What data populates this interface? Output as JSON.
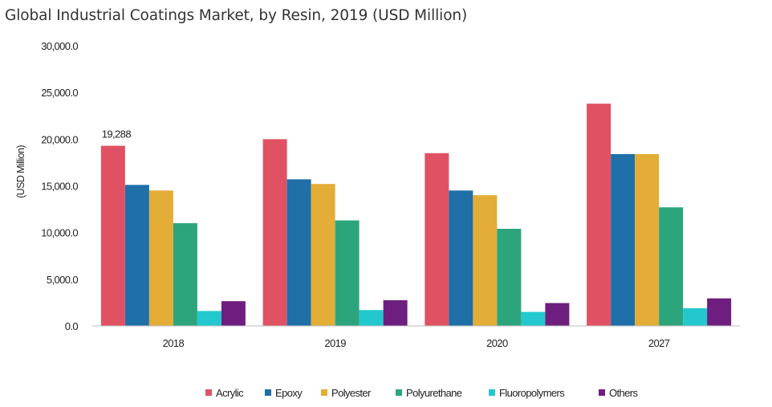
{
  "chart_data": {
    "type": "bar",
    "title": "Global Industrial Coatings Market, by Resin, 2019 (USD Million)",
    "xlabel": "",
    "ylabel": "(USD Million)",
    "ylim": [
      0,
      30000
    ],
    "yticks": [
      "0.0",
      "5,000.0",
      "10,000.0",
      "15,000.0",
      "20,000.0",
      "25,000.0",
      "30,000.0"
    ],
    "categories": [
      "2018",
      "2019",
      "2020",
      "2027"
    ],
    "series": [
      {
        "name": "Acrylic",
        "color": "#E05263",
        "values": [
          19288,
          20000,
          18500,
          23800
        ]
      },
      {
        "name": "Epoxy",
        "color": "#1F6FA8",
        "values": [
          15100,
          15700,
          14500,
          18400
        ]
      },
      {
        "name": "Polyester",
        "color": "#E3AD37",
        "values": [
          14500,
          15200,
          14000,
          18400
        ]
      },
      {
        "name": "Polyurethane",
        "color": "#2DA57C",
        "values": [
          11000,
          11300,
          10400,
          12700
        ]
      },
      {
        "name": "Fluoropolymers",
        "color": "#22C8CE",
        "values": [
          1600,
          1700,
          1500,
          1900
        ]
      },
      {
        "name": "Others",
        "color": "#6E1E7E",
        "values": [
          2650,
          2750,
          2450,
          2950
        ]
      }
    ],
    "data_labels": [
      {
        "series": 0,
        "category": 0,
        "text": "19,288"
      }
    ],
    "grid": false,
    "legend_position": "bottom"
  }
}
